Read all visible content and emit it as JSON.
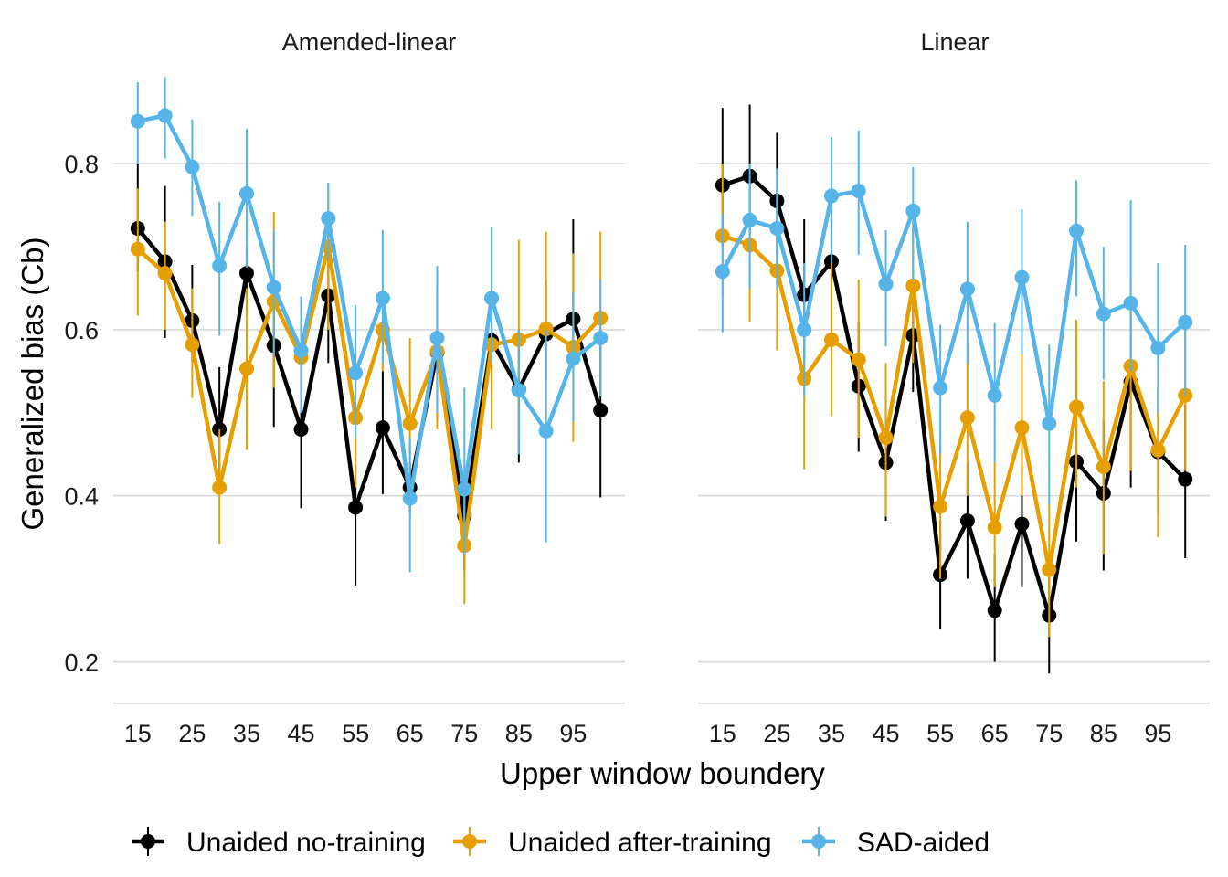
{
  "chart_data": {
    "type": "line",
    "xlabel": "Upper window boundery",
    "ylabel": "Generalized bias (Cb)",
    "ylim": [
      0.15,
      0.92
    ],
    "yticks": [
      0.2,
      0.4,
      0.6,
      0.8
    ],
    "ytick_labels": [
      "0.2",
      "0.4",
      "0.6",
      "0.8"
    ],
    "xlim": [
      10.5,
      104.5
    ],
    "xticks": [
      15,
      25,
      35,
      45,
      55,
      65,
      75,
      85,
      95
    ],
    "xtick_labels": [
      "15",
      "25",
      "35",
      "45",
      "55",
      "65",
      "75",
      "85",
      "95"
    ],
    "x": [
      15,
      20,
      25,
      30,
      35,
      40,
      45,
      50,
      55,
      60,
      65,
      70,
      75,
      80,
      85,
      90,
      95,
      100
    ],
    "grid": true,
    "legend_position": "bottom",
    "colors": {
      "Unaided no-training": "#000000",
      "Unaided after-training": "#E69F00",
      "SAD-aided": "#56B4E9"
    },
    "panels": [
      {
        "title": "Amended-linear",
        "series": [
          {
            "name": "Unaided no-training",
            "values": [
              0.722,
              0.682,
              0.611,
              0.48,
              0.668,
              0.581,
              0.48,
              0.641,
              0.386,
              0.482,
              0.41,
              0.573,
              0.376,
              0.587,
              0.528,
              0.595,
              0.613,
              0.503
            ],
            "lower": [
              0.67,
              0.59,
              0.56,
              0.42,
              0.62,
              0.483,
              0.385,
              0.56,
              0.292,
              0.402,
              0.38,
              0.49,
              0.31,
              0.52,
              0.44,
              0.54,
              0.56,
              0.398
            ],
            "upper": [
              0.8,
              0.773,
              0.678,
              0.555,
              0.7,
              0.64,
              0.57,
              0.72,
              0.47,
              0.55,
              0.44,
              0.65,
              0.42,
              0.64,
              0.6,
              0.66,
              0.733,
              0.6
            ]
          },
          {
            "name": "Unaided after-training",
            "values": [
              0.697,
              0.668,
              0.582,
              0.41,
              0.553,
              0.634,
              0.567,
              0.7,
              0.494,
              0.6,
              0.487,
              0.574,
              0.34,
              0.582,
              0.588,
              0.601,
              0.579,
              0.614
            ],
            "lower": [
              0.617,
              0.6,
              0.518,
              0.342,
              0.455,
              0.53,
              0.505,
              0.6,
              0.41,
              0.55,
              0.415,
              0.48,
              0.27,
              0.48,
              0.47,
              0.49,
              0.465,
              0.52
            ],
            "upper": [
              0.77,
              0.73,
              0.65,
              0.48,
              0.65,
              0.742,
              0.63,
              0.77,
              0.575,
              0.65,
              0.59,
              0.67,
              0.41,
              0.69,
              0.708,
              0.718,
              0.692,
              0.718
            ]
          },
          {
            "name": "SAD-aided",
            "values": [
              0.851,
              0.858,
              0.796,
              0.677,
              0.764,
              0.651,
              0.575,
              0.734,
              0.548,
              0.638,
              0.397,
              0.59,
              0.408,
              0.638,
              0.527,
              0.478,
              0.565,
              0.59
            ],
            "lower": [
              0.8,
              0.806,
              0.737,
              0.593,
              0.675,
              0.57,
              0.5,
              0.685,
              0.47,
              0.56,
              0.308,
              0.5,
              0.33,
              0.56,
              0.45,
              0.344,
              0.49,
              0.52
            ],
            "upper": [
              0.898,
              0.904,
              0.853,
              0.754,
              0.842,
              0.72,
              0.64,
              0.777,
              0.63,
              0.72,
              0.47,
              0.677,
              0.53,
              0.724,
              0.6,
              0.6,
              0.645,
              0.66
            ]
          }
        ]
      },
      {
        "title": "Linear",
        "series": [
          {
            "name": "Unaided no-training",
            "values": [
              0.774,
              0.785,
              0.755,
              0.642,
              0.682,
              0.532,
              0.44,
              0.593,
              0.305,
              0.37,
              0.262,
              0.366,
              0.256,
              0.441,
              0.403,
              0.537,
              0.453,
              0.42
            ],
            "lower": [
              0.7,
              0.7,
              0.68,
              0.56,
              0.6,
              0.453,
              0.37,
              0.525,
              0.24,
              0.3,
              0.2,
              0.29,
              0.186,
              0.345,
              0.31,
              0.41,
              0.38,
              0.325
            ],
            "upper": [
              0.867,
              0.871,
              0.837,
              0.733,
              0.75,
              0.61,
              0.52,
              0.66,
              0.37,
              0.44,
              0.33,
              0.44,
              0.33,
              0.54,
              0.49,
              0.63,
              0.53,
              0.51
            ]
          },
          {
            "name": "Unaided after-training",
            "values": [
              0.713,
              0.702,
              0.671,
              0.541,
              0.588,
              0.564,
              0.47,
              0.653,
              0.387,
              0.494,
              0.362,
              0.482,
              0.311,
              0.507,
              0.435,
              0.556,
              0.455,
              0.521
            ],
            "lower": [
              0.64,
              0.61,
              0.575,
              0.432,
              0.496,
              0.47,
              0.375,
              0.56,
              0.3,
              0.4,
              0.29,
              0.4,
              0.23,
              0.41,
              0.33,
              0.43,
              0.35,
              0.43
            ],
            "upper": [
              0.8,
              0.78,
              0.76,
              0.63,
              0.68,
              0.66,
              0.56,
              0.75,
              0.47,
              0.58,
              0.44,
              0.58,
              0.39,
              0.612,
              0.538,
              0.66,
              0.556,
              0.61
            ]
          },
          {
            "name": "SAD-aided",
            "values": [
              0.67,
              0.732,
              0.722,
              0.6,
              0.761,
              0.767,
              0.655,
              0.743,
              0.53,
              0.649,
              0.521,
              0.663,
              0.487,
              0.719,
              0.619,
              0.632,
              0.578,
              0.609
            ],
            "lower": [
              0.597,
              0.65,
              0.65,
              0.52,
              0.68,
              0.69,
              0.58,
              0.66,
              0.45,
              0.56,
              0.44,
              0.57,
              0.39,
              0.64,
              0.54,
              0.55,
              0.5,
              0.52
            ],
            "upper": [
              0.74,
              0.8,
              0.794,
              0.68,
              0.832,
              0.84,
              0.72,
              0.796,
              0.606,
              0.73,
              0.608,
              0.745,
              0.582,
              0.78,
              0.7,
              0.756,
              0.68,
              0.702
            ]
          }
        ]
      }
    ]
  }
}
